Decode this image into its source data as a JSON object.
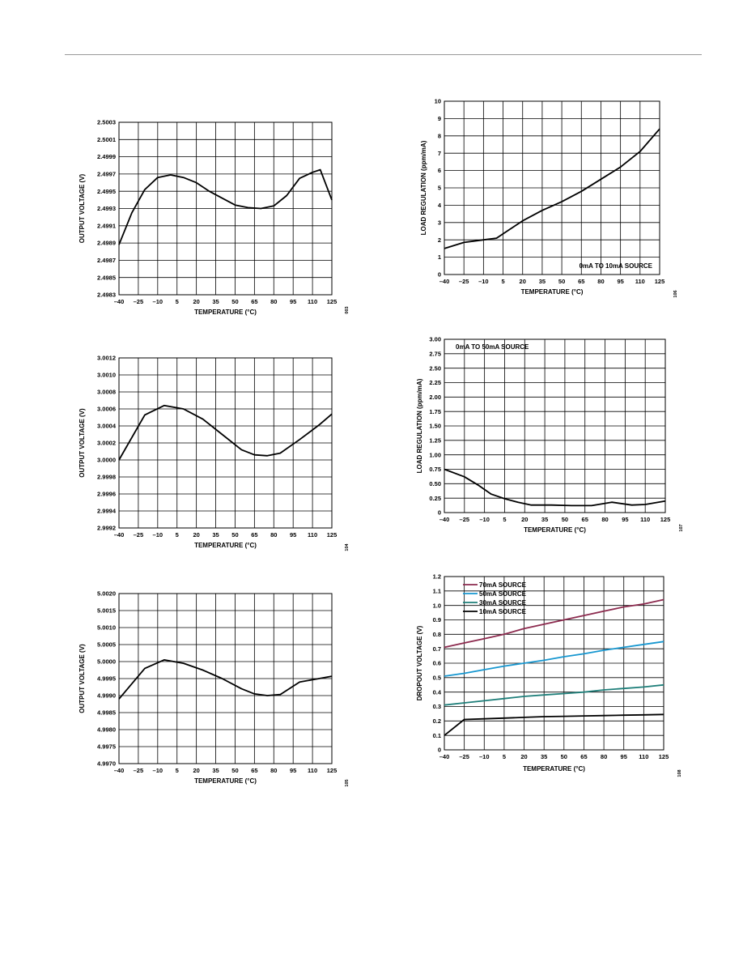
{
  "chart_data": [
    {
      "type": "line",
      "xlabel": "TEMPERATURE (°C)",
      "ylabel": "OUTPUT VOLTAGE (V)",
      "x_ticks": [
        -40,
        -25,
        -10,
        5,
        20,
        35,
        50,
        65,
        80,
        95,
        110,
        125
      ],
      "x_tick_labels": [
        "–40",
        "–25",
        "–10",
        "5",
        "20",
        "35",
        "50",
        "65",
        "80",
        "95",
        "110",
        "125"
      ],
      "xlim": [
        -40,
        125
      ],
      "y_ticks": [
        2.4983,
        2.4985,
        2.4987,
        2.4989,
        2.4991,
        2.4993,
        2.4995,
        2.4997,
        2.4999,
        2.5001,
        2.5003
      ],
      "y_tick_labels": [
        "2.4983",
        "2.4985",
        "2.4987",
        "2.4989",
        "2.4991",
        "2.4993",
        "2.4995",
        "2.4997",
        "2.4999",
        "2.5001",
        "2.5003"
      ],
      "ylim": [
        2.4983,
        2.5003
      ],
      "grid": true,
      "figure_id": "003",
      "series": [
        {
          "color": "#000000",
          "x": [
            -40,
            -30,
            -20,
            -10,
            0,
            10,
            20,
            30,
            40,
            50,
            60,
            70,
            80,
            90,
            100,
            110,
            116,
            125
          ],
          "y": [
            2.49888,
            2.49925,
            2.49952,
            2.49966,
            2.49969,
            2.49966,
            2.4996,
            2.4995,
            2.49942,
            2.49934,
            2.49931,
            2.4993,
            2.49933,
            2.49945,
            2.49965,
            2.49972,
            2.49975,
            2.4994
          ]
        }
      ]
    },
    {
      "type": "line",
      "xlabel": "TEMPERATURE (°C)",
      "ylabel": "OUTPUT VOLTAGE (V)",
      "x_ticks": [
        -40,
        -25,
        -10,
        5,
        20,
        35,
        50,
        65,
        80,
        95,
        110,
        125
      ],
      "x_tick_labels": [
        "–40",
        "–25",
        "–10",
        "5",
        "20",
        "35",
        "50",
        "65",
        "80",
        "95",
        "110",
        "125"
      ],
      "xlim": [
        -40,
        125
      ],
      "y_ticks": [
        2.9992,
        2.9994,
        2.9996,
        2.9998,
        3.0,
        3.0002,
        3.0004,
        3.0006,
        3.0008,
        3.001,
        3.0012
      ],
      "y_tick_labels": [
        "2.9992",
        "2.9994",
        "2.9996",
        "2.9998",
        "3.0000",
        "3.0002",
        "3.0004",
        "3.0006",
        "3.0008",
        "3.0010",
        "3.0012"
      ],
      "ylim": [
        2.9992,
        3.0012
      ],
      "grid": true,
      "figure_id": "104",
      "series": [
        {
          "color": "#000000",
          "x": [
            -40,
            -20,
            -5,
            10,
            25,
            40,
            55,
            65,
            75,
            85,
            100,
            115,
            125
          ],
          "y": [
            3.0,
            3.00053,
            3.00064,
            3.0006,
            3.00048,
            3.0003,
            3.00012,
            3.00006,
            3.00005,
            3.00008,
            3.00024,
            3.00041,
            3.00054
          ]
        }
      ]
    },
    {
      "type": "line",
      "xlabel": "TEMPERATURE (°C)",
      "ylabel": "OUTPUT VOLTAGE (V)",
      "x_ticks": [
        -40,
        -25,
        -10,
        5,
        20,
        35,
        50,
        65,
        80,
        95,
        110,
        125
      ],
      "x_tick_labels": [
        "–40",
        "–25",
        "–10",
        "5",
        "20",
        "35",
        "50",
        "65",
        "80",
        "95",
        "110",
        "125"
      ],
      "xlim": [
        -40,
        125
      ],
      "y_ticks": [
        4.997,
        4.9975,
        4.998,
        4.9985,
        4.999,
        4.9995,
        5.0,
        5.0005,
        5.001,
        5.0015,
        5.002
      ],
      "y_tick_labels": [
        "4.9970",
        "4.9975",
        "4.9980",
        "4.9985",
        "4.9990",
        "4.9995",
        "5.0000",
        "5.0005",
        "5.0010",
        "5.0015",
        "5.0020"
      ],
      "ylim": [
        4.997,
        5.002
      ],
      "grid": true,
      "figure_id": "105",
      "series": [
        {
          "color": "#000000",
          "x": [
            -40,
            -20,
            -5,
            10,
            25,
            40,
            55,
            65,
            75,
            85,
            100,
            115,
            125
          ],
          "y": [
            4.9989,
            4.9998,
            5.00005,
            4.99995,
            4.99975,
            4.9995,
            4.9992,
            4.99905,
            4.999,
            4.99903,
            4.9994,
            4.9995,
            4.99957
          ]
        }
      ]
    },
    {
      "type": "line",
      "xlabel": "TEMPERATURE (°C)",
      "ylabel": "LOAD REGULATION (ppm/mA)",
      "x_ticks": [
        -40,
        -25,
        -10,
        5,
        20,
        35,
        50,
        65,
        80,
        95,
        110,
        125
      ],
      "x_tick_labels": [
        "–40",
        "–25",
        "–10",
        "5",
        "20",
        "35",
        "50",
        "65",
        "80",
        "95",
        "110",
        "125"
      ],
      "xlim": [
        -40,
        125
      ],
      "y_ticks": [
        0,
        1,
        2,
        3,
        4,
        5,
        6,
        7,
        8,
        9,
        10
      ],
      "y_tick_labels": [
        "0",
        "1",
        "2",
        "3",
        "4",
        "5",
        "6",
        "7",
        "8",
        "9",
        "10"
      ],
      "ylim": [
        0,
        10
      ],
      "grid": true,
      "annotation": "0mA TO 10mA SOURCE",
      "figure_id": "106",
      "series": [
        {
          "color": "#000000",
          "x": [
            -40,
            -25,
            -10,
            0,
            10,
            20,
            35,
            50,
            65,
            80,
            95,
            110,
            125
          ],
          "y": [
            1.5,
            1.85,
            2.0,
            2.1,
            2.6,
            3.1,
            3.7,
            4.2,
            4.8,
            5.5,
            6.2,
            7.1,
            8.4
          ]
        }
      ]
    },
    {
      "type": "line",
      "xlabel": "TEMPERATURE (°C)",
      "ylabel": "LOAD REGULATION (ppm/mA)",
      "x_ticks": [
        -40,
        -25,
        -10,
        5,
        20,
        35,
        50,
        65,
        80,
        95,
        110,
        125
      ],
      "x_tick_labels": [
        "–40",
        "–25",
        "–10",
        "5",
        "20",
        "35",
        "50",
        "65",
        "80",
        "95",
        "110",
        "125"
      ],
      "xlim": [
        -40,
        125
      ],
      "y_ticks": [
        0,
        0.25,
        0.5,
        0.75,
        1.0,
        1.25,
        1.5,
        1.75,
        2.0,
        2.25,
        2.5,
        2.75,
        3.0
      ],
      "y_tick_labels": [
        "0",
        "0.25",
        "0.50",
        "0.75",
        "1.00",
        "1.25",
        "1.50",
        "1.75",
        "2.00",
        "2.25",
        "2.50",
        "2.75",
        "3.00"
      ],
      "ylim": [
        0,
        3
      ],
      "grid": true,
      "annotation": "0mA TO 50mA SOURCE",
      "figure_id": "107",
      "series": [
        {
          "color": "#000000",
          "x": [
            -40,
            -25,
            -15,
            -5,
            5,
            15,
            25,
            40,
            55,
            70,
            85,
            100,
            110,
            125
          ],
          "y": [
            0.75,
            0.62,
            0.48,
            0.32,
            0.24,
            0.18,
            0.13,
            0.13,
            0.12,
            0.12,
            0.18,
            0.13,
            0.14,
            0.2
          ]
        }
      ]
    },
    {
      "type": "line",
      "xlabel": "TEMPERATURE (°C)",
      "ylabel": "DROPOUT VOLTAGE (V)",
      "x_ticks": [
        -40,
        -25,
        -10,
        5,
        20,
        35,
        50,
        65,
        80,
        95,
        110,
        125
      ],
      "x_tick_labels": [
        "–40",
        "–25",
        "–10",
        "5",
        "20",
        "35",
        "50",
        "65",
        "80",
        "95",
        "110",
        "125"
      ],
      "xlim": [
        -40,
        125
      ],
      "y_ticks": [
        0,
        0.1,
        0.2,
        0.3,
        0.4,
        0.5,
        0.6,
        0.7,
        0.8,
        0.9,
        1.0,
        1.1,
        1.2
      ],
      "y_tick_labels": [
        "0",
        "0.1",
        "0.2",
        "0.3",
        "0.4",
        "0.5",
        "0.6",
        "0.7",
        "0.8",
        "0.9",
        "1.0",
        "1.1",
        "1.2"
      ],
      "ylim": [
        0,
        1.2
      ],
      "grid": true,
      "legend_position": "top-left",
      "figure_id": "108",
      "series": [
        {
          "name": "70mA SOURCE",
          "color": "#8c2a4e",
          "x": [
            -40,
            -25,
            -10,
            5,
            20,
            35,
            50,
            65,
            80,
            95,
            110,
            125
          ],
          "y": [
            0.71,
            0.74,
            0.77,
            0.8,
            0.84,
            0.87,
            0.9,
            0.93,
            0.96,
            0.99,
            1.01,
            1.04
          ]
        },
        {
          "name": "50mA SOURCE",
          "color": "#1797d0",
          "x": [
            -40,
            -25,
            -10,
            5,
            20,
            35,
            50,
            65,
            80,
            95,
            110,
            125
          ],
          "y": [
            0.51,
            0.53,
            0.555,
            0.58,
            0.6,
            0.62,
            0.645,
            0.665,
            0.69,
            0.71,
            0.73,
            0.75
          ]
        },
        {
          "name": "30mA SOURCE",
          "color": "#1f7f7a",
          "x": [
            -40,
            -25,
            -10,
            5,
            20,
            35,
            50,
            65,
            80,
            95,
            110,
            125
          ],
          "y": [
            0.31,
            0.325,
            0.34,
            0.355,
            0.37,
            0.38,
            0.39,
            0.4,
            0.415,
            0.425,
            0.435,
            0.45
          ]
        },
        {
          "name": "10mA SOURCE",
          "color": "#000000",
          "x": [
            -40,
            -25,
            -10,
            5,
            20,
            35,
            50,
            65,
            80,
            95,
            110,
            125
          ],
          "y": [
            0.1,
            0.21,
            0.215,
            0.22,
            0.225,
            0.23,
            0.232,
            0.235,
            0.237,
            0.24,
            0.242,
            0.245
          ]
        }
      ]
    }
  ]
}
